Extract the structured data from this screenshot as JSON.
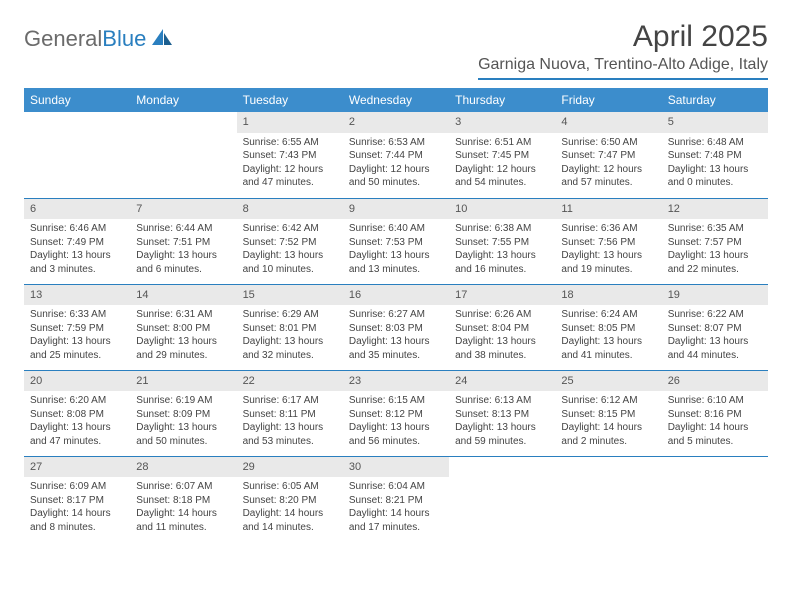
{
  "brand": {
    "part1": "General",
    "part2": "Blue"
  },
  "title": "April 2025",
  "location": "Garniga Nuova, Trentino-Alto Adige, Italy",
  "colors": {
    "header_bg": "#3c8dcc",
    "header_text": "#ffffff",
    "rule": "#2a7fbf",
    "daynum_bg": "#e9e9e9",
    "body_text": "#444444",
    "logo_gray": "#6b6b6b",
    "logo_blue": "#2a7fbf"
  },
  "weekdays": [
    "Sunday",
    "Monday",
    "Tuesday",
    "Wednesday",
    "Thursday",
    "Friday",
    "Saturday"
  ],
  "weeks": [
    [
      null,
      null,
      {
        "n": "1",
        "sunrise": "6:55 AM",
        "sunset": "7:43 PM",
        "daylight": "12 hours and 47 minutes."
      },
      {
        "n": "2",
        "sunrise": "6:53 AM",
        "sunset": "7:44 PM",
        "daylight": "12 hours and 50 minutes."
      },
      {
        "n": "3",
        "sunrise": "6:51 AM",
        "sunset": "7:45 PM",
        "daylight": "12 hours and 54 minutes."
      },
      {
        "n": "4",
        "sunrise": "6:50 AM",
        "sunset": "7:47 PM",
        "daylight": "12 hours and 57 minutes."
      },
      {
        "n": "5",
        "sunrise": "6:48 AM",
        "sunset": "7:48 PM",
        "daylight": "13 hours and 0 minutes."
      }
    ],
    [
      {
        "n": "6",
        "sunrise": "6:46 AM",
        "sunset": "7:49 PM",
        "daylight": "13 hours and 3 minutes."
      },
      {
        "n": "7",
        "sunrise": "6:44 AM",
        "sunset": "7:51 PM",
        "daylight": "13 hours and 6 minutes."
      },
      {
        "n": "8",
        "sunrise": "6:42 AM",
        "sunset": "7:52 PM",
        "daylight": "13 hours and 10 minutes."
      },
      {
        "n": "9",
        "sunrise": "6:40 AM",
        "sunset": "7:53 PM",
        "daylight": "13 hours and 13 minutes."
      },
      {
        "n": "10",
        "sunrise": "6:38 AM",
        "sunset": "7:55 PM",
        "daylight": "13 hours and 16 minutes."
      },
      {
        "n": "11",
        "sunrise": "6:36 AM",
        "sunset": "7:56 PM",
        "daylight": "13 hours and 19 minutes."
      },
      {
        "n": "12",
        "sunrise": "6:35 AM",
        "sunset": "7:57 PM",
        "daylight": "13 hours and 22 minutes."
      }
    ],
    [
      {
        "n": "13",
        "sunrise": "6:33 AM",
        "sunset": "7:59 PM",
        "daylight": "13 hours and 25 minutes."
      },
      {
        "n": "14",
        "sunrise": "6:31 AM",
        "sunset": "8:00 PM",
        "daylight": "13 hours and 29 minutes."
      },
      {
        "n": "15",
        "sunrise": "6:29 AM",
        "sunset": "8:01 PM",
        "daylight": "13 hours and 32 minutes."
      },
      {
        "n": "16",
        "sunrise": "6:27 AM",
        "sunset": "8:03 PM",
        "daylight": "13 hours and 35 minutes."
      },
      {
        "n": "17",
        "sunrise": "6:26 AM",
        "sunset": "8:04 PM",
        "daylight": "13 hours and 38 minutes."
      },
      {
        "n": "18",
        "sunrise": "6:24 AM",
        "sunset": "8:05 PM",
        "daylight": "13 hours and 41 minutes."
      },
      {
        "n": "19",
        "sunrise": "6:22 AM",
        "sunset": "8:07 PM",
        "daylight": "13 hours and 44 minutes."
      }
    ],
    [
      {
        "n": "20",
        "sunrise": "6:20 AM",
        "sunset": "8:08 PM",
        "daylight": "13 hours and 47 minutes."
      },
      {
        "n": "21",
        "sunrise": "6:19 AM",
        "sunset": "8:09 PM",
        "daylight": "13 hours and 50 minutes."
      },
      {
        "n": "22",
        "sunrise": "6:17 AM",
        "sunset": "8:11 PM",
        "daylight": "13 hours and 53 minutes."
      },
      {
        "n": "23",
        "sunrise": "6:15 AM",
        "sunset": "8:12 PM",
        "daylight": "13 hours and 56 minutes."
      },
      {
        "n": "24",
        "sunrise": "6:13 AM",
        "sunset": "8:13 PM",
        "daylight": "13 hours and 59 minutes."
      },
      {
        "n": "25",
        "sunrise": "6:12 AM",
        "sunset": "8:15 PM",
        "daylight": "14 hours and 2 minutes."
      },
      {
        "n": "26",
        "sunrise": "6:10 AM",
        "sunset": "8:16 PM",
        "daylight": "14 hours and 5 minutes."
      }
    ],
    [
      {
        "n": "27",
        "sunrise": "6:09 AM",
        "sunset": "8:17 PM",
        "daylight": "14 hours and 8 minutes."
      },
      {
        "n": "28",
        "sunrise": "6:07 AM",
        "sunset": "8:18 PM",
        "daylight": "14 hours and 11 minutes."
      },
      {
        "n": "29",
        "sunrise": "6:05 AM",
        "sunset": "8:20 PM",
        "daylight": "14 hours and 14 minutes."
      },
      {
        "n": "30",
        "sunrise": "6:04 AM",
        "sunset": "8:21 PM",
        "daylight": "14 hours and 17 minutes."
      },
      null,
      null,
      null
    ]
  ],
  "labels": {
    "sunrise": "Sunrise: ",
    "sunset": "Sunset: ",
    "daylight": "Daylight: "
  }
}
